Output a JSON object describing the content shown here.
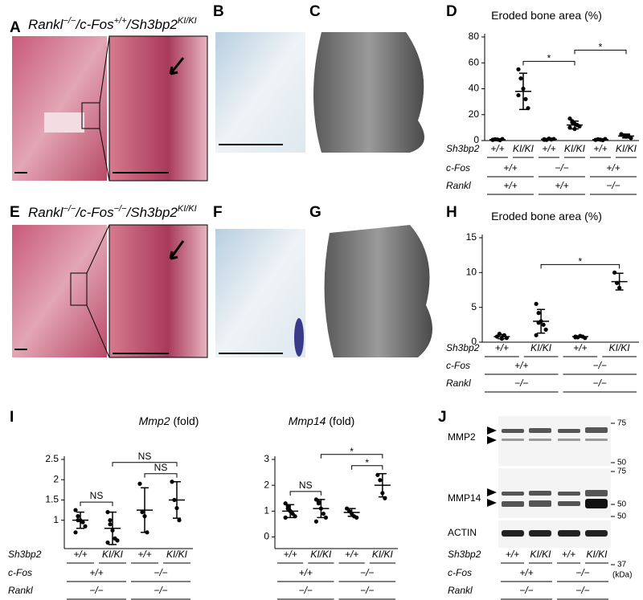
{
  "panels": [
    "A",
    "B",
    "C",
    "D",
    "E",
    "F",
    "G",
    "H",
    "I",
    "J"
  ],
  "image_titles": [
    [
      "Rankl",
      "−/−",
      "/c-Fos",
      "+/+",
      "/Sh3bp2",
      "KI/KI"
    ],
    [
      "Rankl",
      "−/−",
      "/c-Fos",
      "−/−",
      "/Sh3bp2",
      "KI/KI"
    ]
  ],
  "chart_data": [
    {
      "type": "dot",
      "title": "Eroded bone area (%)",
      "color": "#000000",
      "ylim": [
        0,
        80
      ],
      "yticks": [
        0,
        20,
        40,
        60,
        80
      ],
      "groups": [
        {
          "points": [
            0.5,
            1,
            0.8,
            0.3,
            1.2,
            0.6
          ],
          "mean": 0.7,
          "sd": 0.4
        },
        {
          "points": [
            55,
            48,
            40,
            32,
            25,
            35
          ],
          "mean": 38,
          "sd": 14
        },
        {
          "points": [
            1,
            0.5,
            1.5,
            0.8,
            1.2,
            0.6
          ],
          "mean": 1,
          "sd": 0.5
        },
        {
          "points": [
            17,
            15,
            13,
            12,
            11,
            10,
            14,
            9,
            12
          ],
          "mean": 12,
          "sd": 3
        },
        {
          "points": [
            0.5,
            1,
            0.7,
            0.4,
            1.2
          ],
          "mean": 0.7,
          "sd": 0.4
        },
        {
          "points": [
            5,
            4,
            3,
            3.5,
            2,
            4.5
          ],
          "mean": 3.5,
          "sd": 1.5
        }
      ],
      "significance": [
        {
          "from": 1,
          "to": 3,
          "label": "*"
        },
        {
          "from": 3,
          "to": 5,
          "label": "*"
        }
      ],
      "row_labels": [
        "Sh3bp2",
        "c-Fos",
        "Rankl"
      ],
      "rows": [
        [
          "+/+",
          "KI/KI",
          "+/+",
          "KI/KI",
          "+/+",
          "KI/KI"
        ],
        [
          "+/+",
          "−/−",
          "+/+"
        ],
        [
          "+/+",
          "+/+",
          "−/−"
        ]
      ]
    },
    {
      "type": "dot",
      "title": "Eroded bone area (%)",
      "color": "#000000",
      "ylim": [
        0,
        15
      ],
      "yticks": [
        0,
        5,
        10,
        15
      ],
      "groups": [
        {
          "points": [
            0.8,
            1.2,
            0.5,
            1,
            0.6
          ],
          "mean": 0.8,
          "sd": 0.3
        },
        {
          "points": [
            5.5,
            4.2,
            3,
            2.5,
            1.8,
            1,
            2.8
          ],
          "mean": 3,
          "sd": 1.7
        },
        {
          "points": [
            0.8,
            0.7,
            0.9,
            0.8,
            0.6,
            0.7
          ],
          "mean": 0.8,
          "sd": 0.1
        },
        {
          "points": [
            10,
            8.5,
            7.8
          ],
          "mean": 8.7,
          "sd": 1.2
        }
      ],
      "significance": [
        {
          "from": 1,
          "to": 3,
          "label": "*"
        }
      ],
      "row_labels": [
        "Sh3bp2",
        "c-Fos",
        "Rankl"
      ],
      "rows": [
        [
          "+/+",
          "KI/KI",
          "+/+",
          "KI/KI"
        ],
        [
          "+/+",
          "−/−"
        ],
        [
          "−/−",
          "−/−"
        ]
      ]
    },
    {
      "type": "dot",
      "title_italic": "Mmp2",
      "title": "(fold)",
      "color": "#000000",
      "ylim": [
        0.3,
        2.5
      ],
      "yticks": [
        1,
        1.5,
        2,
        2.5
      ],
      "groups": [
        {
          "points": [
            1.25,
            1.1,
            1,
            0.95,
            0.85,
            0.7,
            1
          ],
          "mean": 1,
          "sd": 0.2
        },
        {
          "points": [
            1.2,
            1,
            0.75,
            0.55,
            0.5,
            0.45,
            0.9
          ],
          "mean": 0.8,
          "sd": 0.4
        },
        {
          "points": [
            1.9,
            1.2,
            1.1,
            0.7
          ],
          "mean": 1.25,
          "sd": 0.55
        },
        {
          "points": [
            1.95,
            1.5,
            1.3,
            1.0
          ],
          "mean": 1.5,
          "sd": 0.45
        }
      ],
      "significance": [
        {
          "from": 0,
          "to": 1,
          "label": "NS"
        },
        {
          "from": 2,
          "to": 3,
          "label": "NS"
        },
        {
          "from": 1,
          "to": 3,
          "label": "NS"
        }
      ],
      "row_labels": [
        "Sh3bp2",
        "c-Fos",
        "Rankl"
      ],
      "rows": [
        [
          "+/+",
          "KI/KI",
          "+/+",
          "KI/KI"
        ],
        [
          "+/+",
          "−/−"
        ],
        [
          "−/−",
          "−/−"
        ]
      ]
    },
    {
      "type": "dot",
      "title_italic": "Mmp14",
      "title": "(fold)",
      "color": "#000000",
      "ylim": [
        -0.45,
        3
      ],
      "yticks": [
        0,
        1,
        2,
        3
      ],
      "groups": [
        {
          "points": [
            1.3,
            1.1,
            1,
            0.9,
            0.8,
            0.75,
            1.2,
            1
          ],
          "mean": 1,
          "sd": 0.25
        },
        {
          "points": [
            1.45,
            1.35,
            1.1,
            0.9,
            0.75,
            0.6,
            1.3
          ],
          "mean": 1.1,
          "sd": 0.35
        },
        {
          "points": [
            1.1,
            1,
            0.9,
            0.8,
            0.75
          ],
          "mean": 0.95,
          "sd": 0.15
        },
        {
          "points": [
            2.4,
            2.2,
            1.7,
            1.5
          ],
          "mean": 2,
          "sd": 0.45
        }
      ],
      "significance": [
        {
          "from": 0,
          "to": 1,
          "label": "NS"
        },
        {
          "from": 2,
          "to": 3,
          "label": "*"
        },
        {
          "from": 1,
          "to": 3,
          "label": "*"
        }
      ],
      "rows": [
        [
          "+/+",
          "KI/KI",
          "+/+",
          "KI/KI"
        ],
        [
          "+/+",
          "−/−"
        ],
        [
          "−/−",
          "−/−"
        ]
      ]
    }
  ],
  "blot": {
    "bands": [
      "MMP2",
      "MMP14",
      "ACTIN"
    ],
    "markers": [
      75,
      50,
      75,
      50,
      50,
      37
    ],
    "unit": "(kDa)",
    "row_labels": [
      "Sh3bp2",
      "c-Fos",
      "Rankl"
    ],
    "rows": [
      [
        "+/+",
        "KI/KI",
        "+/+",
        "KI/KI"
      ],
      [
        "+/+",
        "−/−"
      ],
      [
        "−/−",
        "−/−"
      ]
    ]
  }
}
